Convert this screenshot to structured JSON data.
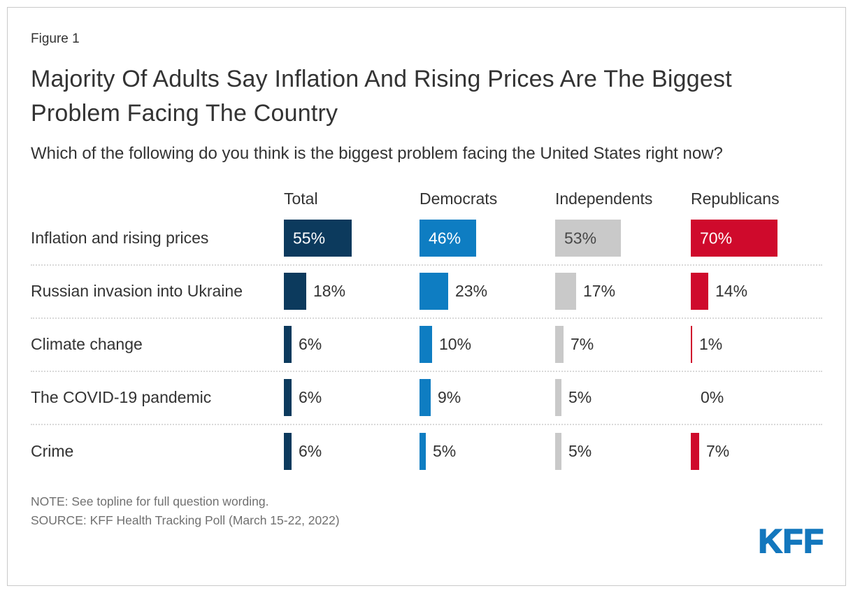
{
  "figure_label": "Figure 1",
  "title": "Majority Of Adults Say Inflation And Rising Prices Are The Biggest Problem Facing The Country",
  "subtitle": "Which of the following do you think is the biggest problem facing the United States right now?",
  "note": "NOTE: See topline for full question wording.",
  "source": "SOURCE: KFF Health Tracking Poll (March 15-22, 2022)",
  "logo_text": "KFF",
  "colors": {
    "total_navy": "#0c3a5d",
    "democrat_blue": "#0e7dc2",
    "independent_gray": "#c9c9c9",
    "republican_red": "#cf0a2c",
    "kff_logo_blue": "#1377bd",
    "text_dark": "#333333",
    "note_gray": "#707070",
    "separator": "#d9d9d9"
  },
  "chart_data": {
    "type": "bar",
    "orientation": "horizontal",
    "title": "Majority Of Adults Say Inflation And Rising Prices Are The Biggest Problem Facing The Country",
    "subtitle": "Which of the following do you think is the biggest problem facing the United States right now?",
    "categories": [
      "Inflation and rising prices",
      "Russian invasion into Ukraine",
      "Climate change",
      "The COVID-19 pandemic",
      "Crime"
    ],
    "series": [
      {
        "name": "Total",
        "color": "#0c3a5d",
        "label_inside_color": "#ffffff",
        "values": [
          55,
          18,
          6,
          6,
          6
        ]
      },
      {
        "name": "Democrats",
        "color": "#0e7dc2",
        "label_inside_color": "#ffffff",
        "values": [
          46,
          23,
          10,
          9,
          5
        ]
      },
      {
        "name": "Independents",
        "color": "#c9c9c9",
        "label_inside_color": "#474747",
        "values": [
          53,
          17,
          7,
          5,
          5
        ]
      },
      {
        "name": "Republicans",
        "color": "#cf0a2c",
        "label_inside_color": "#ffffff",
        "values": [
          70,
          14,
          1,
          0,
          7
        ]
      }
    ],
    "value_suffix": "%",
    "xlim": [
      0,
      100
    ],
    "grid": false,
    "legend_position": "column-headers"
  }
}
